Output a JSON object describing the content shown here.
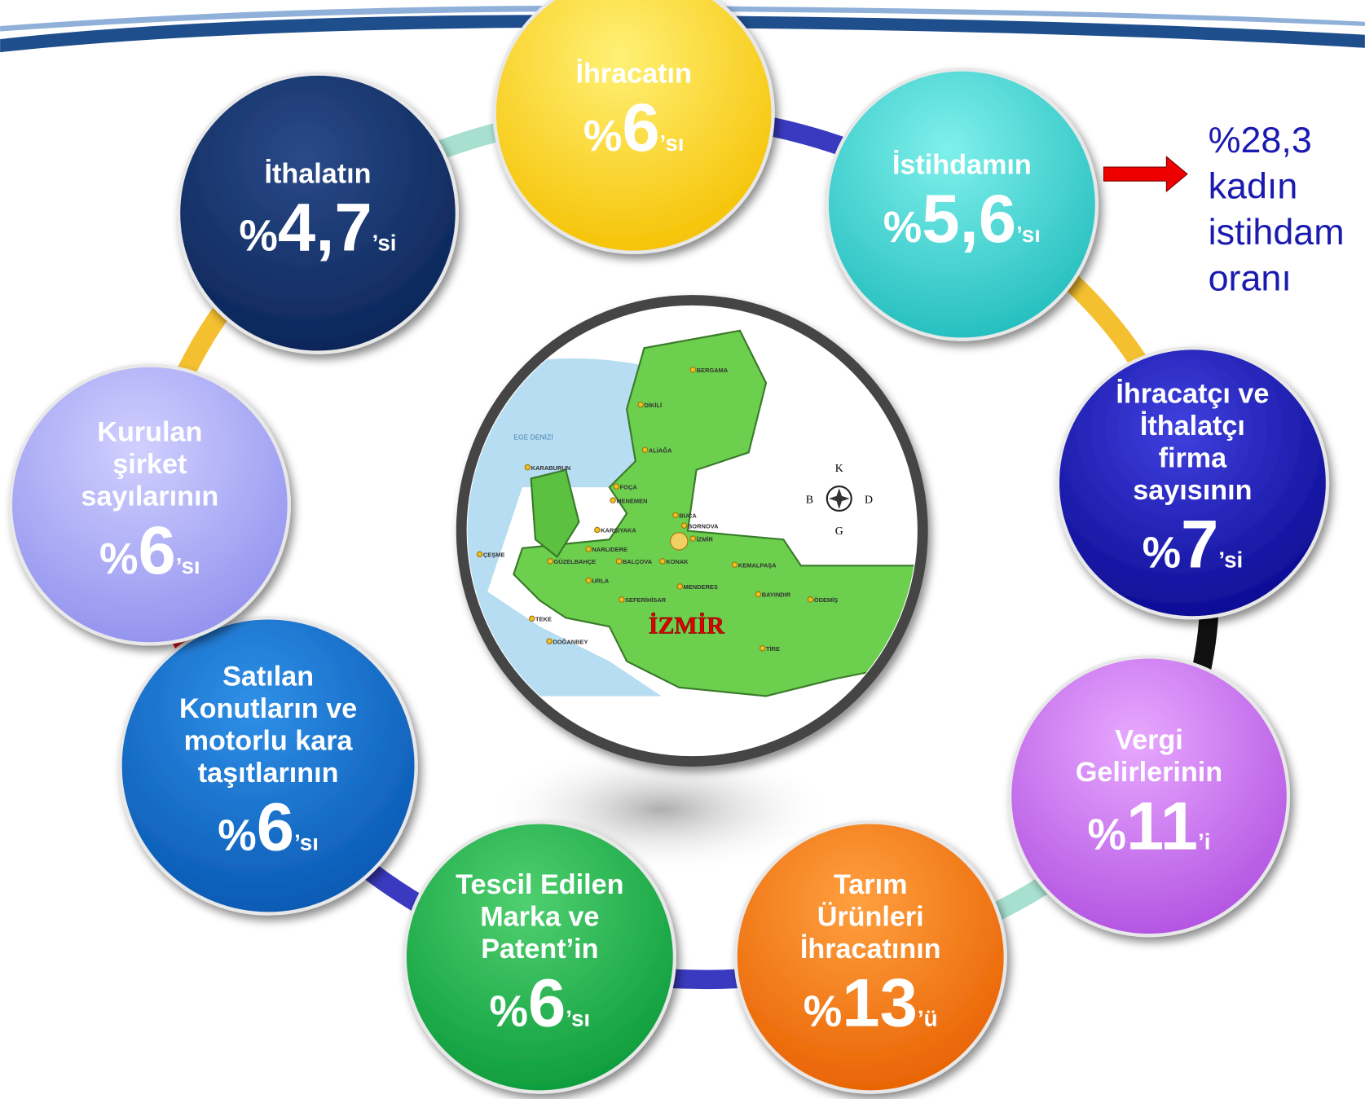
{
  "nodes": [
    {
      "label": [
        "İhracatın"
      ],
      "sign": "%",
      "value": "6",
      "suffix": "’sı"
    },
    {
      "label": [
        "İstihdamın"
      ],
      "sign": "%",
      "value": "5,6",
      "suffix": "’sı"
    },
    {
      "label": [
        "İhracatçı ve",
        "İthalatçı",
        "firma",
        "sayısının"
      ],
      "sign": "%",
      "value": "7",
      "suffix": "’si"
    },
    {
      "label": [
        "Vergi",
        "Gelirlerinin"
      ],
      "sign": "%",
      "value": "11",
      "suffix": "’i"
    },
    {
      "label": [
        "Tarım",
        "Ürünleri",
        "İhracatının"
      ],
      "sign": "%",
      "value": "13",
      "suffix": "’ü"
    },
    {
      "label": [
        "Tescil Edilen",
        "Marka ve",
        "Patent’in"
      ],
      "sign": "%",
      "value": "6",
      "suffix": "’sı"
    },
    {
      "label": [
        "Satılan",
        "Konutların ve",
        "motorlu kara",
        "taşıtlarının"
      ],
      "sign": "%",
      "value": "6",
      "suffix": "’sı"
    },
    {
      "label": [
        "Kurulan",
        "şirket",
        "sayılarının"
      ],
      "sign": "%",
      "value": "6",
      "suffix": "’sı"
    },
    {
      "label": [
        "İthalatın"
      ],
      "sign": "%",
      "value": "4,7",
      "suffix": "’si"
    }
  ],
  "annotation": [
    "%28,3",
    "kadın",
    "istihdam",
    "oranı"
  ],
  "map": {
    "title": "İZMİR",
    "sea": "EGE DENİZİ",
    "places": [
      "BERGAMA",
      "DİKİLİ",
      "ALİAĞA",
      "KARABURUN",
      "FOÇA",
      "MENEMEN",
      "KARŞIYAKA",
      "BUCA",
      "BORNOVA",
      "İZMİR",
      "ÇEŞME",
      "GÜZELBAHÇE",
      "NARLIDERE",
      "BALÇOVA",
      "KONAK",
      "KEMALPAŞA",
      "URLA",
      "MENDERES",
      "BAYINDIR",
      "SEFERİHİSAR",
      "ÖDEMİŞ",
      "TEKE",
      "DOĞANBEY",
      "TİRE"
    ],
    "compass": [
      "K",
      "B",
      "D",
      "G"
    ]
  }
}
